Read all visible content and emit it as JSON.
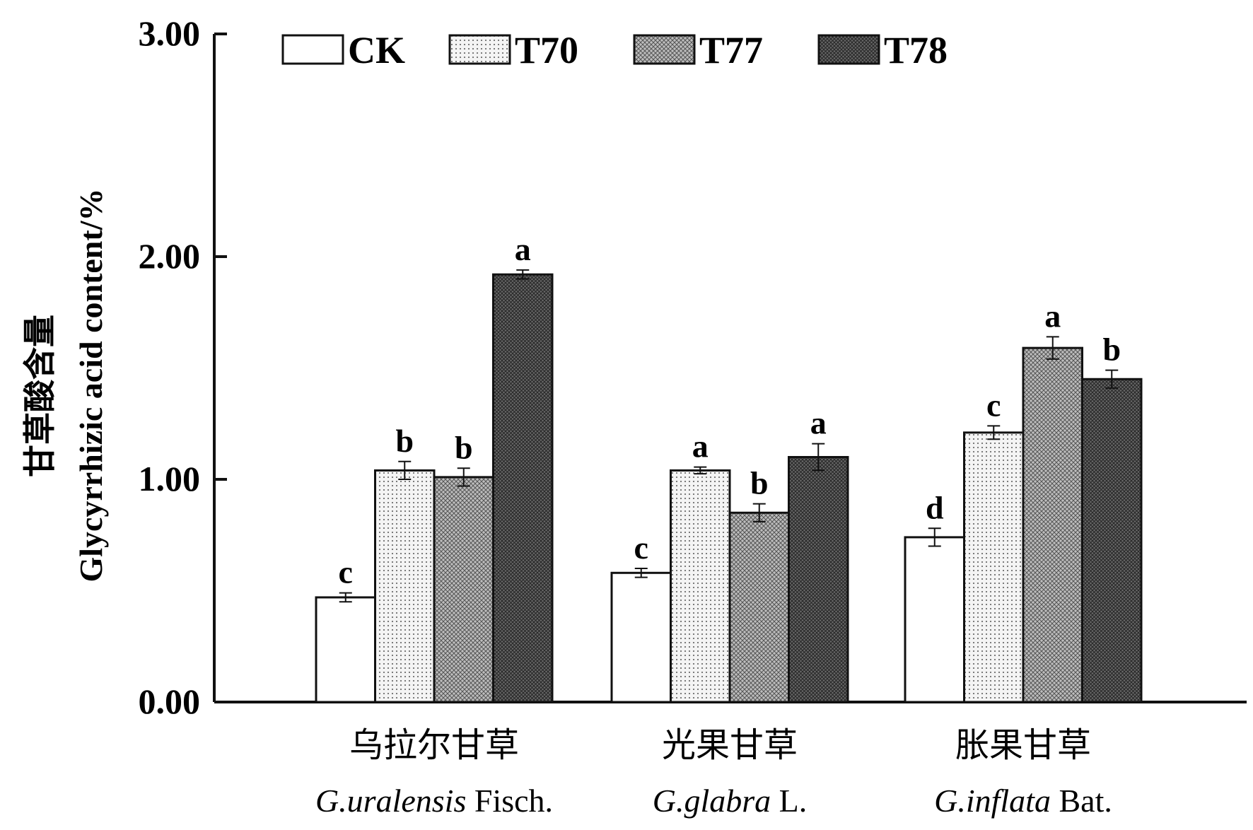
{
  "chart_data": {
    "type": "bar",
    "title": "",
    "ylabel_cn": "甘草酸含量",
    "ylabel": "Glycyrrhizic acid content/%",
    "xlabel": "",
    "ylim": [
      0,
      3
    ],
    "yticks": [
      "0.00",
      "1.00",
      "2.00",
      "3.00"
    ],
    "categories": [
      {
        "cn": "乌拉尔甘草",
        "genus": "G.uralensis",
        "author": "Fisch."
      },
      {
        "cn": "光果甘草",
        "genus": "G.glabra",
        "author": "L."
      },
      {
        "cn": "胀果甘草",
        "genus": "G.inflata",
        "author": "Bat."
      }
    ],
    "legend_position": "top",
    "series": [
      {
        "name": "CK",
        "values": [
          0.47,
          0.58,
          0.74
        ],
        "errors": [
          0.02,
          0.02,
          0.04
        ],
        "letters": [
          "c",
          "c",
          "d"
        ],
        "pattern": "white"
      },
      {
        "name": "T70",
        "values": [
          1.04,
          1.04,
          1.21
        ],
        "errors": [
          0.04,
          0.015,
          0.03
        ],
        "letters": [
          "b",
          "a",
          "c"
        ],
        "pattern": "dots"
      },
      {
        "name": "T77",
        "values": [
          1.01,
          0.85,
          1.59
        ],
        "errors": [
          0.04,
          0.04,
          0.05
        ],
        "letters": [
          "b",
          "b",
          "a"
        ],
        "pattern": "mesh"
      },
      {
        "name": "T78",
        "values": [
          1.92,
          1.1,
          1.45
        ],
        "errors": [
          0.02,
          0.06,
          0.04
        ],
        "letters": [
          "a",
          "a",
          "b"
        ],
        "pattern": "dark"
      }
    ]
  }
}
